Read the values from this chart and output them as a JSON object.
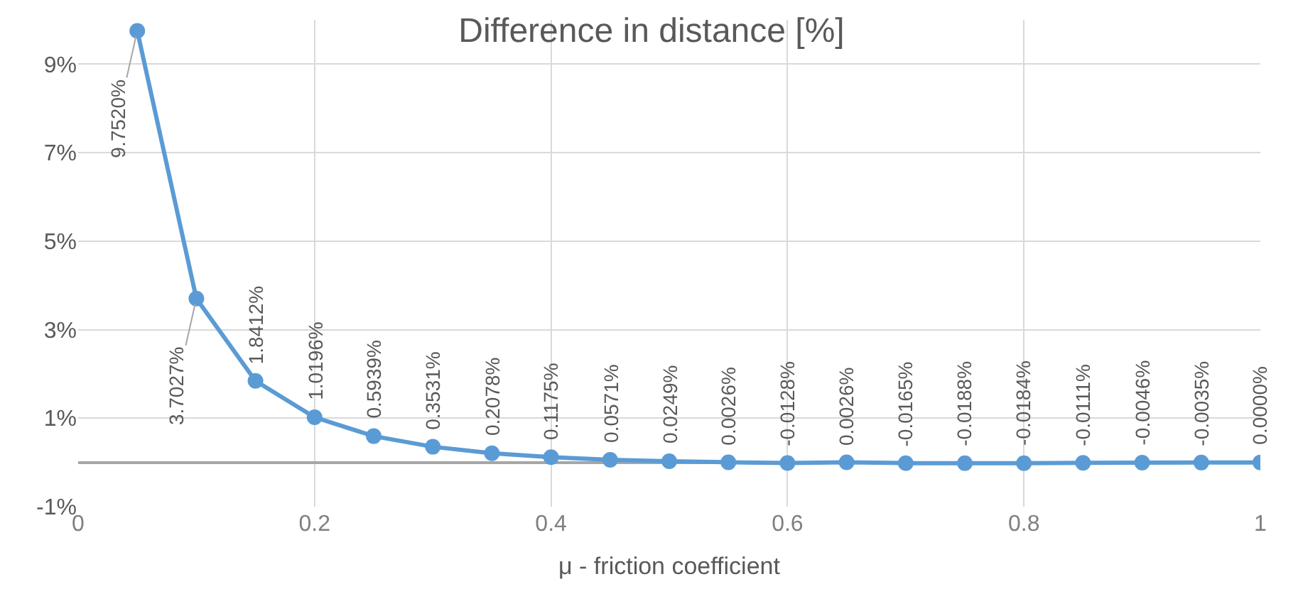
{
  "chart_data": {
    "type": "line",
    "title": "Difference in distance [%]",
    "xlabel": "μ - friction coefficient",
    "x": [
      0.05,
      0.1,
      0.15,
      0.2,
      0.25,
      0.3,
      0.35,
      0.4,
      0.45,
      0.5,
      0.55,
      0.6,
      0.65,
      0.7,
      0.75,
      0.8,
      0.85,
      0.9,
      0.95,
      1.0
    ],
    "series": [
      {
        "color": "#5b9bd5",
        "values": [
          9.752,
          3.7027,
          1.8412,
          1.0196,
          0.5939,
          0.3531,
          0.2078,
          0.1175,
          0.0571,
          0.0249,
          0.0026,
          -0.0128,
          0.0026,
          -0.0165,
          -0.0188,
          -0.0184,
          -0.0111,
          -0.0046,
          -0.0035,
          0.0
        ],
        "value_labels": [
          "9.7520%",
          "3.7027%",
          "1.8412%",
          "1.0196%",
          "0.5939%",
          "0.3531%",
          "0.2078%",
          "0.1175%",
          "0.0571%",
          "0.0249%",
          "0.0026%",
          "-0.0128%",
          "0.0026%",
          "-0.0165%",
          "-0.0188%",
          "-0.0184%",
          "-0.0111%",
          "-0.0046%",
          "-0.0035%",
          "0.0000%"
        ]
      }
    ],
    "xlim": [
      0,
      1
    ],
    "xticks": [
      0,
      0.2,
      0.4,
      0.6,
      0.8,
      1
    ],
    "ylim": [
      -1,
      10
    ],
    "yticks": [
      {
        "value": -1,
        "label": "-1%"
      },
      {
        "value": 1,
        "label": "1%"
      },
      {
        "value": 3,
        "label": "3%"
      },
      {
        "value": 5,
        "label": "5%"
      },
      {
        "value": 7,
        "label": "7%"
      },
      {
        "value": 9,
        "label": "9%"
      }
    ],
    "grid": true,
    "marker": "circle",
    "line_style": "solid"
  }
}
